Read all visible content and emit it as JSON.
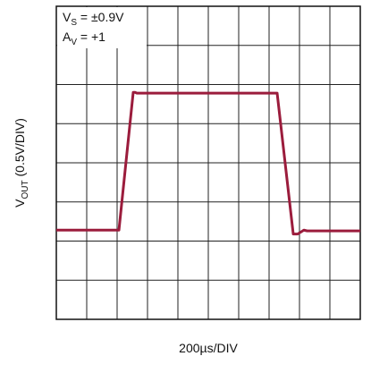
{
  "chart_data": {
    "type": "line",
    "annotations": [
      {
        "main": "V",
        "sub": "S",
        "rest": " = ±0.9V"
      },
      {
        "main": "A",
        "sub": "V",
        "rest": " = +1"
      }
    ],
    "ylabel": {
      "main": "V",
      "sub": "OUT",
      "rest": " (0.5V/DIV)"
    },
    "xlabel": "200µs/DIV",
    "x": [
      0,
      412,
      506,
      518,
      530,
      1453,
      1559,
      1588,
      1629,
      1650,
      2000
    ],
    "series": [
      {
        "color": "#9b1c3c",
        "values": [
          -0.86,
          -0.86,
          0.9,
          0.9,
          0.89,
          0.89,
          -0.91,
          -0.91,
          -0.86,
          -0.87,
          -0.87
        ]
      }
    ],
    "xlim": [
      0,
      2000
    ],
    "xticks": [
      0,
      200,
      400,
      600,
      800,
      1000,
      1200,
      1400,
      1600,
      1800,
      2000
    ],
    "ylim": [
      -2,
      2
    ],
    "yticks": [
      -2,
      -1.5,
      -1,
      -0.5,
      0,
      0.5,
      1,
      1.5,
      2
    ],
    "grid": true
  }
}
